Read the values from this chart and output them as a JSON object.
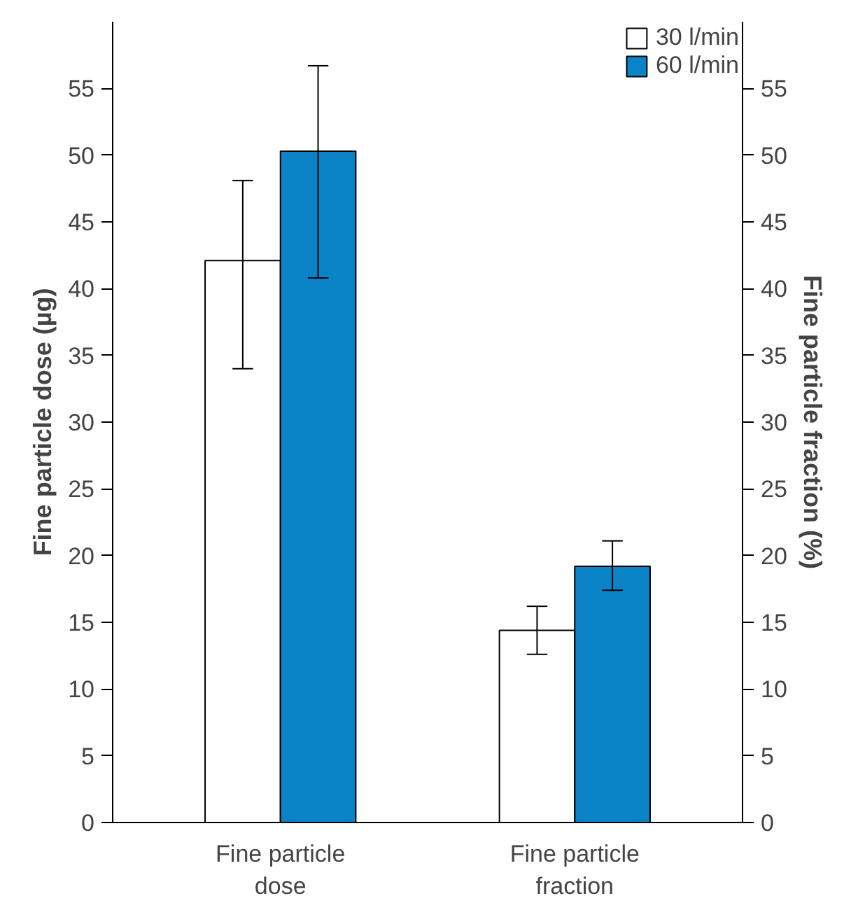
{
  "chart_data": {
    "type": "bar",
    "categories": [
      "Fine particle\ndose",
      "Fine particle\nfraction"
    ],
    "ylabel": "Fine particle dose (µg)",
    "y2label": "Fine particle fraction (%)",
    "ylim": [
      0,
      60
    ],
    "yticks": [
      0,
      5,
      10,
      15,
      20,
      25,
      30,
      35,
      40,
      45,
      50,
      55
    ],
    "y2lim": [
      0,
      60
    ],
    "y2ticks": [
      0,
      5,
      10,
      15,
      20,
      25,
      30,
      35,
      40,
      45,
      50,
      55
    ],
    "series": [
      {
        "name": "30 l/min",
        "color": "#ffffff",
        "values": [
          42.1,
          14.4
        ],
        "errors": [
          [
            34.0,
            48.1
          ],
          [
            12.6,
            16.2
          ]
        ]
      },
      {
        "name": "60 l/min",
        "color": "#0a84c6",
        "values": [
          50.3,
          19.2
        ],
        "errors": [
          [
            40.8,
            56.7
          ],
          [
            17.4,
            21.1
          ]
        ]
      }
    ],
    "legend": "top right",
    "grid": false
  }
}
